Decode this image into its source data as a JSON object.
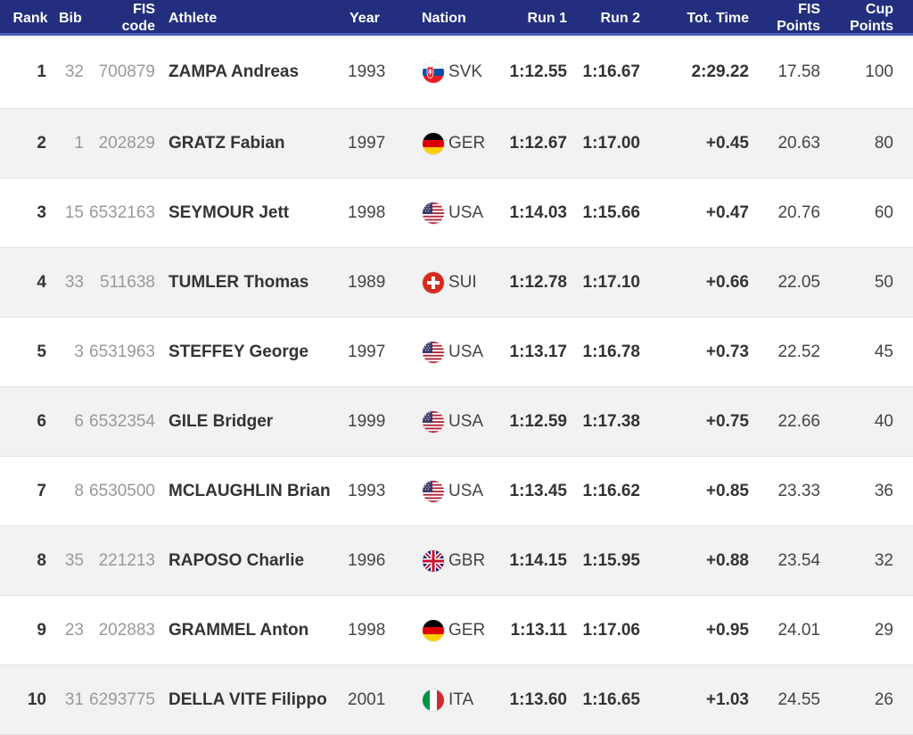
{
  "header": {
    "rank": "Rank",
    "bib": "Bib",
    "fis_code": "FIS\ncode",
    "athlete": "Athlete",
    "year": "Year",
    "nation": "Nation",
    "run1": "Run 1",
    "run2": "Run 2",
    "tot_time": "Tot. Time",
    "fis_points": "FIS\nPoints",
    "cup_points": "Cup\nPoints"
  },
  "colors": {
    "header_bg": "#232f7e",
    "header_border": "#4a5fc1",
    "row_alt": "#f2f2f2"
  },
  "rows": [
    {
      "rank": "1",
      "bib": "32",
      "fis": "700879",
      "athlete": "ZAMPA Andreas",
      "year": "1993",
      "nation": "SVK",
      "flag": "svk-flag-icon",
      "run1": "1:12.55",
      "run2": "1:16.67",
      "tot": "2:29.22",
      "fis_points": "17.58",
      "cup_points": "100"
    },
    {
      "rank": "2",
      "bib": "1",
      "fis": "202829",
      "athlete": "GRATZ Fabian",
      "year": "1997",
      "nation": "GER",
      "flag": "ger-flag-icon",
      "run1": "1:12.67",
      "run2": "1:17.00",
      "tot": "+0.45",
      "fis_points": "20.63",
      "cup_points": "80"
    },
    {
      "rank": "3",
      "bib": "15",
      "fis": "6532163",
      "athlete": "SEYMOUR Jett",
      "year": "1998",
      "nation": "USA",
      "flag": "usa-flag-icon",
      "run1": "1:14.03",
      "run2": "1:15.66",
      "tot": "+0.47",
      "fis_points": "20.76",
      "cup_points": "60"
    },
    {
      "rank": "4",
      "bib": "33",
      "fis": "511638",
      "athlete": "TUMLER Thomas",
      "year": "1989",
      "nation": "SUI",
      "flag": "sui-flag-icon",
      "run1": "1:12.78",
      "run2": "1:17.10",
      "tot": "+0.66",
      "fis_points": "22.05",
      "cup_points": "50"
    },
    {
      "rank": "5",
      "bib": "3",
      "fis": "6531963",
      "athlete": "STEFFEY George",
      "year": "1997",
      "nation": "USA",
      "flag": "usa-flag-icon",
      "run1": "1:13.17",
      "run2": "1:16.78",
      "tot": "+0.73",
      "fis_points": "22.52",
      "cup_points": "45"
    },
    {
      "rank": "6",
      "bib": "6",
      "fis": "6532354",
      "athlete": "GILE Bridger",
      "year": "1999",
      "nation": "USA",
      "flag": "usa-flag-icon",
      "run1": "1:12.59",
      "run2": "1:17.38",
      "tot": "+0.75",
      "fis_points": "22.66",
      "cup_points": "40"
    },
    {
      "rank": "7",
      "bib": "8",
      "fis": "6530500",
      "athlete": "MCLAUGHLIN Brian",
      "year": "1993",
      "nation": "USA",
      "flag": "usa-flag-icon",
      "run1": "1:13.45",
      "run2": "1:16.62",
      "tot": "+0.85",
      "fis_points": "23.33",
      "cup_points": "36"
    },
    {
      "rank": "8",
      "bib": "35",
      "fis": "221213",
      "athlete": "RAPOSO Charlie",
      "year": "1996",
      "nation": "GBR",
      "flag": "gbr-flag-icon",
      "run1": "1:14.15",
      "run2": "1:15.95",
      "tot": "+0.88",
      "fis_points": "23.54",
      "cup_points": "32"
    },
    {
      "rank": "9",
      "bib": "23",
      "fis": "202883",
      "athlete": "GRAMMEL Anton",
      "year": "1998",
      "nation": "GER",
      "flag": "ger-flag-icon",
      "run1": "1:13.11",
      "run2": "1:17.06",
      "tot": "+0.95",
      "fis_points": "24.01",
      "cup_points": "29"
    },
    {
      "rank": "10",
      "bib": "31",
      "fis": "6293775",
      "athlete": "DELLA VITE Filippo",
      "year": "2001",
      "nation": "ITA",
      "flag": "ita-flag-icon",
      "run1": "1:13.60",
      "run2": "1:16.65",
      "tot": "+1.03",
      "fis_points": "24.55",
      "cup_points": "26"
    }
  ]
}
